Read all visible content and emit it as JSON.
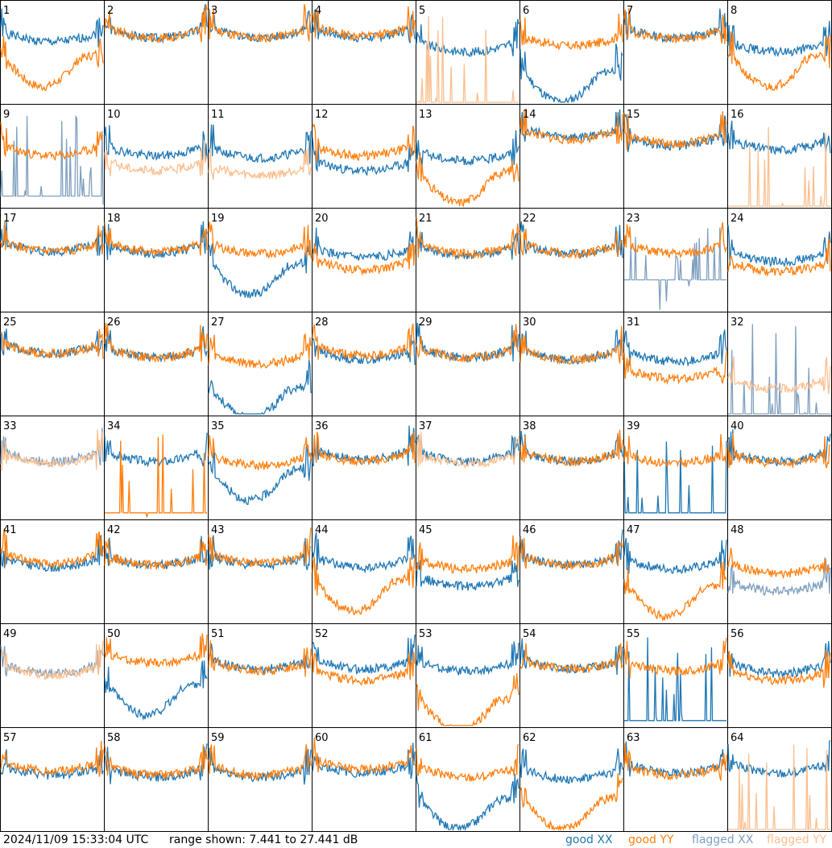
{
  "chart_data": {
    "type": "line",
    "layout": "small-multiples",
    "timestamp": "2024/11/09 15:33:04 UTC",
    "range_label": "range shown: 7.441 to 27.441 dB",
    "ylim": [
      7.441,
      27.441
    ],
    "colors": {
      "good_xx": "#1f77b4",
      "good_yy": "#ff7f0e",
      "flagged_xx": "#7f9fbf",
      "flagged_yy": "#fcbf8f"
    },
    "legend": [
      {
        "key": "good_xx",
        "label": "good XX"
      },
      {
        "key": "good_yy",
        "label": "good YY"
      },
      {
        "key": "flagged_xx",
        "label": "flagged XX"
      },
      {
        "key": "flagged_yy",
        "label": "flagged YY"
      }
    ],
    "panels": [
      {
        "n": "1",
        "xx": "good",
        "yy": "good",
        "xx_level": 0.7,
        "yy_level": 0.5,
        "xx_variant": "normal",
        "yy_variant": "sagging"
      },
      {
        "n": "2",
        "xx": "good",
        "yy": "good",
        "xx_level": 0.74,
        "yy_level": 0.74,
        "xx_variant": "normal",
        "yy_variant": "normal"
      },
      {
        "n": "3",
        "xx": "good",
        "yy": "good",
        "xx_level": 0.74,
        "yy_level": 0.74,
        "xx_variant": "normal",
        "yy_variant": "normal"
      },
      {
        "n": "4",
        "xx": "good",
        "yy": "good",
        "xx_level": 0.74,
        "yy_level": 0.76,
        "xx_variant": "normal",
        "yy_variant": "normal"
      },
      {
        "n": "5",
        "xx": "good",
        "yy": "flagged",
        "xx_level": 0.6,
        "yy_level": 0.0,
        "xx_variant": "normal",
        "yy_variant": "dropout"
      },
      {
        "n": "6",
        "xx": "good",
        "yy": "good",
        "xx_level": 0.35,
        "yy_level": 0.66,
        "xx_variant": "sagging",
        "yy_variant": "normal"
      },
      {
        "n": "7",
        "xx": "good",
        "yy": "good",
        "xx_level": 0.74,
        "yy_level": 0.73,
        "xx_variant": "normal",
        "yy_variant": "normal"
      },
      {
        "n": "8",
        "xx": "good",
        "yy": "good",
        "xx_level": 0.6,
        "yy_level": 0.5,
        "xx_variant": "normal",
        "yy_variant": "sagging"
      },
      {
        "n": "9",
        "xx": "flagged",
        "yy": "good",
        "xx_level": 0.1,
        "yy_level": 0.6,
        "xx_variant": "dropout",
        "yy_variant": "normal"
      },
      {
        "n": "10",
        "xx": "good",
        "yy": "flagged",
        "xx_level": 0.6,
        "yy_level": 0.45,
        "xx_variant": "normal",
        "yy_variant": "normal"
      },
      {
        "n": "11",
        "xx": "good",
        "yy": "flagged",
        "xx_level": 0.58,
        "yy_level": 0.4,
        "xx_variant": "normal",
        "yy_variant": "normal"
      },
      {
        "n": "12",
        "xx": "good",
        "yy": "good",
        "xx_level": 0.45,
        "yy_level": 0.6,
        "xx_variant": "normal",
        "yy_variant": "normal"
      },
      {
        "n": "13",
        "xx": "good",
        "yy": "good",
        "xx_level": 0.55,
        "yy_level": 0.38,
        "xx_variant": "normal",
        "yy_variant": "sagging"
      },
      {
        "n": "14",
        "xx": "good",
        "yy": "good",
        "xx_level": 0.78,
        "yy_level": 0.76,
        "xx_variant": "normal",
        "yy_variant": "normal"
      },
      {
        "n": "15",
        "xx": "good",
        "yy": "good",
        "xx_level": 0.7,
        "yy_level": 0.72,
        "xx_variant": "normal",
        "yy_variant": "normal"
      },
      {
        "n": "16",
        "xx": "good",
        "yy": "flagged",
        "xx_level": 0.66,
        "yy_level": 0.0,
        "xx_variant": "normal",
        "yy_variant": "dropout"
      },
      {
        "n": "17",
        "xx": "good",
        "yy": "good",
        "xx_level": 0.68,
        "yy_level": 0.68,
        "xx_variant": "normal",
        "yy_variant": "normal"
      },
      {
        "n": "18",
        "xx": "good",
        "yy": "good",
        "xx_level": 0.66,
        "yy_level": 0.68,
        "xx_variant": "normal",
        "yy_variant": "normal"
      },
      {
        "n": "19",
        "xx": "good",
        "yy": "good",
        "xx_level": 0.5,
        "yy_level": 0.66,
        "xx_variant": "sagging",
        "yy_variant": "normal"
      },
      {
        "n": "20",
        "xx": "good",
        "yy": "good",
        "xx_level": 0.62,
        "yy_level": 0.5,
        "xx_variant": "normal",
        "yy_variant": "normal"
      },
      {
        "n": "21",
        "xx": "good",
        "yy": "good",
        "xx_level": 0.64,
        "yy_level": 0.66,
        "xx_variant": "normal",
        "yy_variant": "normal"
      },
      {
        "n": "22",
        "xx": "good",
        "yy": "good",
        "xx_level": 0.66,
        "yy_level": 0.66,
        "xx_variant": "normal",
        "yy_variant": "normal"
      },
      {
        "n": "23",
        "xx": "flagged",
        "yy": "good",
        "xx_level": 0.3,
        "yy_level": 0.66,
        "xx_variant": "dropout",
        "yy_variant": "normal"
      },
      {
        "n": "24",
        "xx": "good",
        "yy": "good",
        "xx_level": 0.58,
        "yy_level": 0.48,
        "xx_variant": "normal",
        "yy_variant": "normal"
      },
      {
        "n": "25",
        "xx": "good",
        "yy": "good",
        "xx_level": 0.7,
        "yy_level": 0.7,
        "xx_variant": "normal",
        "yy_variant": "normal"
      },
      {
        "n": "26",
        "xx": "good",
        "yy": "good",
        "xx_level": 0.66,
        "yy_level": 0.66,
        "xx_variant": "normal",
        "yy_variant": "normal"
      },
      {
        "n": "27",
        "xx": "good",
        "yy": "good",
        "xx_level": 0.3,
        "yy_level": 0.6,
        "xx_variant": "sagging",
        "yy_variant": "normal"
      },
      {
        "n": "28",
        "xx": "good",
        "yy": "good",
        "xx_level": 0.64,
        "yy_level": 0.68,
        "xx_variant": "normal",
        "yy_variant": "normal"
      },
      {
        "n": "29",
        "xx": "good",
        "yy": "good",
        "xx_level": 0.66,
        "yy_level": 0.66,
        "xx_variant": "normal",
        "yy_variant": "normal"
      },
      {
        "n": "30",
        "xx": "good",
        "yy": "good",
        "xx_level": 0.64,
        "yy_level": 0.64,
        "xx_variant": "normal",
        "yy_variant": "normal"
      },
      {
        "n": "31",
        "xx": "good",
        "yy": "good",
        "xx_level": 0.62,
        "yy_level": 0.45,
        "xx_variant": "normal",
        "yy_variant": "normal"
      },
      {
        "n": "32",
        "xx": "flagged",
        "yy": "flagged",
        "xx_level": 0.0,
        "yy_level": 0.35,
        "xx_variant": "dropout",
        "yy_variant": "normal"
      },
      {
        "n": "33",
        "xx": "flagged",
        "yy": "flagged",
        "xx_level": 0.66,
        "yy_level": 0.64,
        "xx_variant": "normal",
        "yy_variant": "normal"
      },
      {
        "n": "34",
        "xx": "good",
        "yy": "good",
        "xx_level": 0.66,
        "yy_level": 0.05,
        "xx_variant": "normal",
        "yy_variant": "dropout"
      },
      {
        "n": "35",
        "xx": "good",
        "yy": "good",
        "xx_level": 0.52,
        "yy_level": 0.62,
        "xx_variant": "sagging",
        "yy_variant": "normal"
      },
      {
        "n": "36",
        "xx": "good",
        "yy": "good",
        "xx_level": 0.68,
        "yy_level": 0.66,
        "xx_variant": "normal",
        "yy_variant": "normal"
      },
      {
        "n": "37",
        "xx": "good",
        "yy": "flagged",
        "xx_level": 0.66,
        "yy_level": 0.64,
        "xx_variant": "normal",
        "yy_variant": "normal"
      },
      {
        "n": "38",
        "xx": "good",
        "yy": "good",
        "xx_level": 0.66,
        "yy_level": 0.66,
        "xx_variant": "normal",
        "yy_variant": "normal"
      },
      {
        "n": "39",
        "xx": "good",
        "yy": "good",
        "xx_level": 0.05,
        "yy_level": 0.64,
        "xx_variant": "dropout",
        "yy_variant": "normal"
      },
      {
        "n": "40",
        "xx": "good",
        "yy": "good",
        "xx_level": 0.66,
        "yy_level": 0.64,
        "xx_variant": "normal",
        "yy_variant": "normal"
      },
      {
        "n": "41",
        "xx": "good",
        "yy": "good",
        "xx_level": 0.64,
        "yy_level": 0.68,
        "xx_variant": "normal",
        "yy_variant": "normal"
      },
      {
        "n": "42",
        "xx": "good",
        "yy": "good",
        "xx_level": 0.66,
        "yy_level": 0.66,
        "xx_variant": "normal",
        "yy_variant": "normal"
      },
      {
        "n": "43",
        "xx": "good",
        "yy": "good",
        "xx_level": 0.66,
        "yy_level": 0.68,
        "xx_variant": "normal",
        "yy_variant": "normal"
      },
      {
        "n": "44",
        "xx": "good",
        "yy": "good",
        "xx_level": 0.64,
        "yy_level": 0.45,
        "xx_variant": "normal",
        "yy_variant": "sagging"
      },
      {
        "n": "45",
        "xx": "good",
        "yy": "good",
        "xx_level": 0.45,
        "yy_level": 0.62,
        "xx_variant": "normal",
        "yy_variant": "normal"
      },
      {
        "n": "46",
        "xx": "good",
        "yy": "good",
        "xx_level": 0.66,
        "yy_level": 0.66,
        "xx_variant": "normal",
        "yy_variant": "normal"
      },
      {
        "n": "47",
        "xx": "good",
        "yy": "good",
        "xx_level": 0.62,
        "yy_level": 0.4,
        "xx_variant": "normal",
        "yy_variant": "sagging"
      },
      {
        "n": "48",
        "xx": "flagged",
        "yy": "good",
        "xx_level": 0.4,
        "yy_level": 0.58,
        "xx_variant": "normal",
        "yy_variant": "normal"
      },
      {
        "n": "49",
        "xx": "flagged",
        "yy": "flagged",
        "xx_level": 0.62,
        "yy_level": 0.6,
        "xx_variant": "normal",
        "yy_variant": "normal"
      },
      {
        "n": "50",
        "xx": "good",
        "yy": "good",
        "xx_level": 0.45,
        "yy_level": 0.72,
        "xx_variant": "sagging",
        "yy_variant": "normal"
      },
      {
        "n": "51",
        "xx": "good",
        "yy": "good",
        "xx_level": 0.66,
        "yy_level": 0.64,
        "xx_variant": "normal",
        "yy_variant": "normal"
      },
      {
        "n": "52",
        "xx": "good",
        "yy": "good",
        "xx_level": 0.66,
        "yy_level": 0.55,
        "xx_variant": "normal",
        "yy_variant": "normal"
      },
      {
        "n": "53",
        "xx": "good",
        "yy": "good",
        "xx_level": 0.64,
        "yy_level": 0.3,
        "xx_variant": "normal",
        "yy_variant": "sagging"
      },
      {
        "n": "54",
        "xx": "good",
        "yy": "good",
        "xx_level": 0.66,
        "yy_level": 0.66,
        "xx_variant": "normal",
        "yy_variant": "normal"
      },
      {
        "n": "55",
        "xx": "good",
        "yy": "good",
        "xx_level": 0.05,
        "yy_level": 0.64,
        "xx_variant": "dropout",
        "yy_variant": "normal"
      },
      {
        "n": "56",
        "xx": "good",
        "yy": "good",
        "xx_level": 0.62,
        "yy_level": 0.55,
        "xx_variant": "normal",
        "yy_variant": "normal"
      },
      {
        "n": "57",
        "xx": "good",
        "yy": "good",
        "xx_level": 0.64,
        "yy_level": 0.68,
        "xx_variant": "normal",
        "yy_variant": "normal"
      },
      {
        "n": "58",
        "xx": "good",
        "yy": "good",
        "xx_level": 0.62,
        "yy_level": 0.64,
        "xx_variant": "normal",
        "yy_variant": "normal"
      },
      {
        "n": "59",
        "xx": "good",
        "yy": "good",
        "xx_level": 0.62,
        "yy_level": 0.64,
        "xx_variant": "normal",
        "yy_variant": "normal"
      },
      {
        "n": "60",
        "xx": "good",
        "yy": "good",
        "xx_level": 0.66,
        "yy_level": 0.7,
        "xx_variant": "normal",
        "yy_variant": "normal"
      },
      {
        "n": "61",
        "xx": "good",
        "yy": "good",
        "xx_level": 0.35,
        "yy_level": 0.62,
        "xx_variant": "sagging",
        "yy_variant": "normal"
      },
      {
        "n": "62",
        "xx": "good",
        "yy": "good",
        "xx_level": 0.6,
        "yy_level": 0.35,
        "xx_variant": "normal",
        "yy_variant": "sagging"
      },
      {
        "n": "63",
        "xx": "good",
        "yy": "good",
        "xx_level": 0.66,
        "yy_level": 0.64,
        "xx_variant": "normal",
        "yy_variant": "normal"
      },
      {
        "n": "64",
        "xx": "good",
        "yy": "flagged",
        "xx_level": 0.66,
        "yy_level": 0.0,
        "xx_variant": "normal",
        "yy_variant": "dropout"
      }
    ]
  }
}
